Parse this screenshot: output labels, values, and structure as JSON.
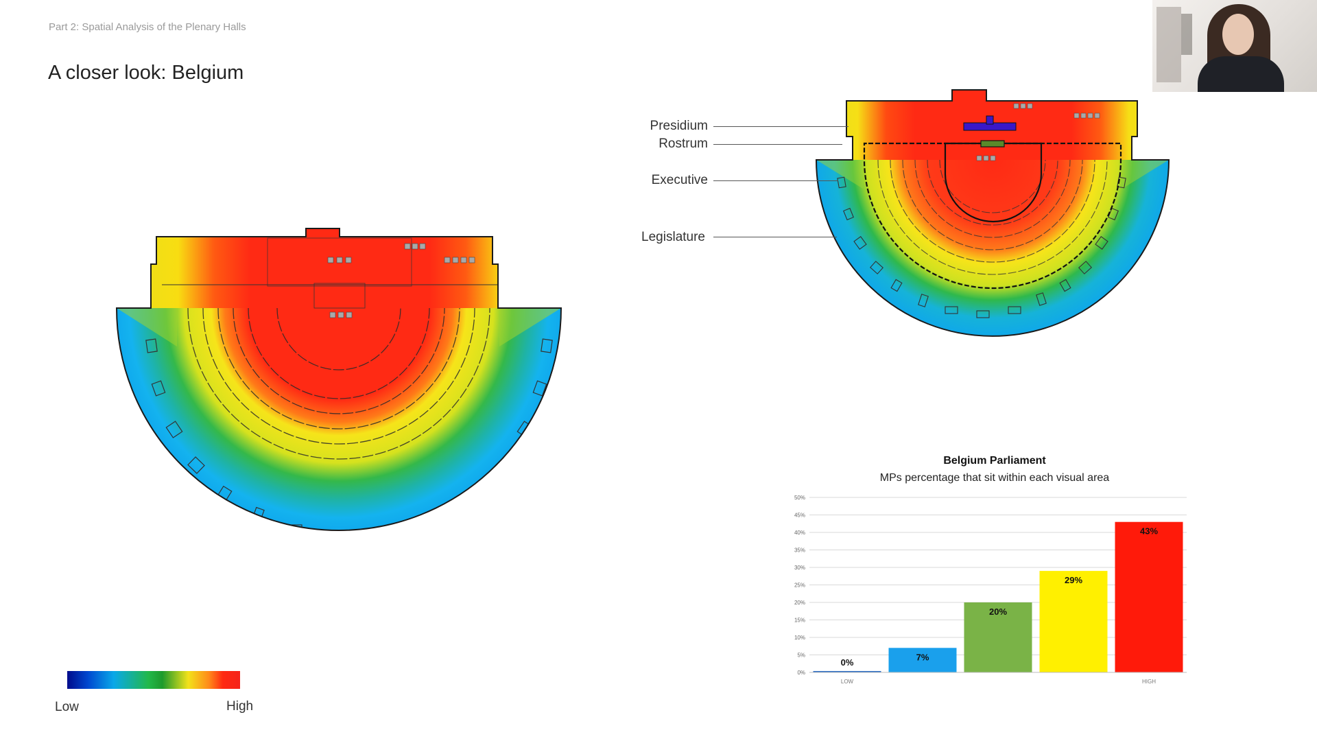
{
  "slide": {
    "section_label": "Part 2: Spatial Analysis of the Plenary Halls",
    "title": "A closer look: Belgium"
  },
  "diagram_labels": {
    "presidium": "Presidium",
    "rostrum": "Rostrum",
    "executive": "Executive",
    "legislature": "Legislature"
  },
  "legend": {
    "low": "Low",
    "high": "High",
    "gradient_colors": [
      "#000c8c",
      "#0aa8e8",
      "#22b84a",
      "#f2e21a",
      "#f5231a"
    ]
  },
  "chart_data": {
    "type": "bar",
    "title": "Belgium Parliament",
    "subtitle": "MPs percentage that sit within each visual area",
    "categories": [
      "LOW",
      "",
      "",
      "",
      "HIGH"
    ],
    "values": [
      0,
      7,
      20,
      29,
      43
    ],
    "data_labels": [
      "0%",
      "7%",
      "20%",
      "29%",
      "43%"
    ],
    "colors": [
      "#2f6fc4",
      "#1aa0ec",
      "#7ab347",
      "#fff000",
      "#ff1a0a"
    ],
    "ylim": [
      0,
      50
    ],
    "yticks": [
      "0%",
      "5%",
      "10%",
      "15%",
      "20%",
      "25%",
      "30%",
      "35%",
      "40%",
      "45%",
      "50%"
    ],
    "grid": true,
    "xlabel": "",
    "ylabel": ""
  },
  "webcam": {
    "icon": "presenter-video-icon"
  }
}
